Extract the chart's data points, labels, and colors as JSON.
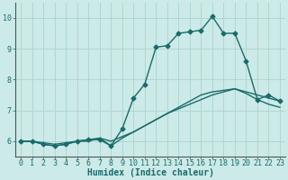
{
  "title": "",
  "xlabel": "Humidex (Indice chaleur)",
  "ylabel": "",
  "bg_color": "#cceae7",
  "grid_color": "#aad4d0",
  "line_color": "#1a6b6b",
  "spine_color": "#555555",
  "xlim": [
    -0.5,
    23.5
  ],
  "ylim": [
    5.5,
    10.5
  ],
  "yticks": [
    6,
    7,
    8,
    9,
    10
  ],
  "xticks": [
    0,
    1,
    2,
    3,
    4,
    5,
    6,
    7,
    8,
    9,
    10,
    11,
    12,
    13,
    14,
    15,
    16,
    17,
    18,
    19,
    20,
    21,
    22,
    23
  ],
  "series1_x": [
    0,
    1,
    2,
    3,
    4,
    5,
    6,
    7,
    8,
    9,
    10,
    11,
    12,
    13,
    14,
    15,
    16,
    17,
    18,
    19,
    20,
    21,
    22,
    23
  ],
  "series1_y": [
    6.0,
    6.0,
    5.9,
    5.85,
    5.9,
    6.0,
    6.05,
    6.05,
    5.85,
    6.4,
    7.4,
    7.85,
    9.05,
    9.1,
    9.5,
    9.55,
    9.6,
    10.05,
    9.5,
    9.5,
    8.6,
    7.35,
    7.5,
    7.3
  ],
  "series2_x": [
    0,
    1,
    2,
    3,
    4,
    5,
    6,
    7,
    8,
    9,
    10,
    11,
    12,
    13,
    14,
    15,
    16,
    17,
    18,
    19,
    20,
    21,
    22,
    23
  ],
  "series2_y": [
    6.0,
    6.0,
    5.9,
    5.85,
    5.9,
    6.0,
    6.0,
    6.1,
    5.85,
    6.1,
    6.3,
    6.5,
    6.7,
    6.9,
    7.1,
    7.3,
    7.5,
    7.6,
    7.65,
    7.7,
    7.55,
    7.35,
    7.2,
    7.1
  ],
  "series3_x": [
    0,
    1,
    2,
    3,
    4,
    5,
    6,
    7,
    8,
    9,
    10,
    11,
    12,
    13,
    14,
    15,
    16,
    17,
    18,
    19,
    20,
    21,
    22,
    23
  ],
  "series3_y": [
    6.0,
    6.0,
    5.95,
    5.9,
    5.95,
    6.0,
    6.05,
    6.1,
    6.0,
    6.15,
    6.3,
    6.5,
    6.7,
    6.9,
    7.05,
    7.2,
    7.35,
    7.5,
    7.6,
    7.7,
    7.6,
    7.5,
    7.4,
    7.3
  ],
  "xlabel_fontsize": 7,
  "tick_fontsize": 6,
  "linewidth": 1.0,
  "markersize": 2.5
}
